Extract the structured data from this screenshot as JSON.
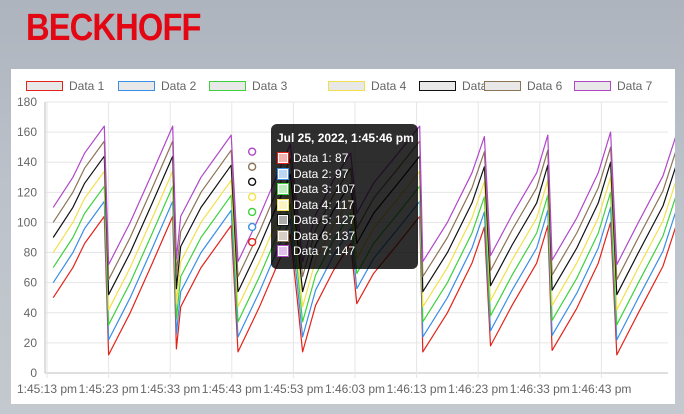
{
  "brand": {
    "logo_text": "BECKHOFF"
  },
  "chart_data": {
    "type": "line",
    "y_ticks": [
      "0",
      "20",
      "40",
      "60",
      "80",
      "100",
      "120",
      "140",
      "160",
      "180"
    ],
    "ylim": [
      0,
      180
    ],
    "x_ticks": [
      "1:45:13 pm",
      "1:45:23 pm",
      "1:45:33 pm",
      "1:45:43 pm",
      "1:45:53 pm",
      "1:46:03 pm",
      "1:46:13 pm",
      "1:46:23 pm",
      "1:46:33 pm",
      "1:46:43 pm"
    ],
    "grid": true,
    "legend_position": "top",
    "series": [
      {
        "name": "Data 1",
        "color": "#e2231a",
        "offset": 0
      },
      {
        "name": "Data 2",
        "color": "#3a8ee6",
        "offset": 10
      },
      {
        "name": "Data 3",
        "color": "#3ed13e",
        "offset": 20
      },
      {
        "name": "Data 4",
        "color": "#f2e04a",
        "offset": 30
      },
      {
        "name": "Data 5",
        "color": "#111111",
        "offset": 40
      },
      {
        "name": "Data 6",
        "color": "#8b7355",
        "offset": 50
      },
      {
        "name": "Data 7",
        "color": "#b047c9",
        "offset": 60
      }
    ],
    "base_series": [
      [
        1.0,
        50
      ],
      [
        4.2,
        70
      ],
      [
        6.1,
        86
      ],
      [
        9.3,
        104
      ],
      [
        10.0,
        12
      ],
      [
        13.5,
        40
      ],
      [
        17.0,
        72
      ],
      [
        20.4,
        104
      ],
      [
        21.0,
        16
      ],
      [
        21.7,
        44
      ],
      [
        25.0,
        70
      ],
      [
        29.9,
        98
      ],
      [
        31.0,
        14
      ],
      [
        34.5,
        44
      ],
      [
        37.0,
        68
      ],
      [
        39.5,
        92
      ],
      [
        40.6,
        50
      ],
      [
        41.5,
        14
      ],
      [
        43.6,
        45
      ],
      [
        46.5,
        68
      ],
      [
        49.3,
        86
      ],
      [
        50.3,
        46
      ],
      [
        53.0,
        66
      ],
      [
        57.0,
        86
      ],
      [
        60.5,
        104
      ],
      [
        61.0,
        14
      ],
      [
        65.0,
        40
      ],
      [
        69.0,
        73
      ],
      [
        71.0,
        97
      ],
      [
        72.0,
        18
      ],
      [
        75.5,
        45
      ],
      [
        79.5,
        73
      ],
      [
        81.3,
        98
      ],
      [
        82.0,
        15
      ],
      [
        86.0,
        43
      ],
      [
        89.5,
        73
      ],
      [
        91.5,
        100
      ],
      [
        92.5,
        12
      ],
      [
        96.0,
        40
      ],
      [
        100.0,
        71
      ],
      [
        102.7,
        105
      ],
      [
        103.8,
        16
      ],
      [
        106.0,
        35
      ],
      [
        107.5,
        48
      ],
      [
        108.4,
        66
      ],
      [
        109.0,
        22
      ]
    ]
  },
  "tooltip": {
    "title": "Jul 25, 2022, 1:45:46 pm",
    "rows": [
      {
        "label": "Data 1: 87",
        "color": "#e2231a"
      },
      {
        "label": "Data 2: 97",
        "color": "#3a8ee6"
      },
      {
        "label": "Data 3: 107",
        "color": "#3ed13e"
      },
      {
        "label": "Data 4: 117",
        "color": "#f2e04a"
      },
      {
        "label": "Data 5: 127",
        "color": "#111111"
      },
      {
        "label": "Data 6: 137",
        "color": "#8b7355"
      },
      {
        "label": "Data 7: 147",
        "color": "#b047c9"
      }
    ]
  }
}
